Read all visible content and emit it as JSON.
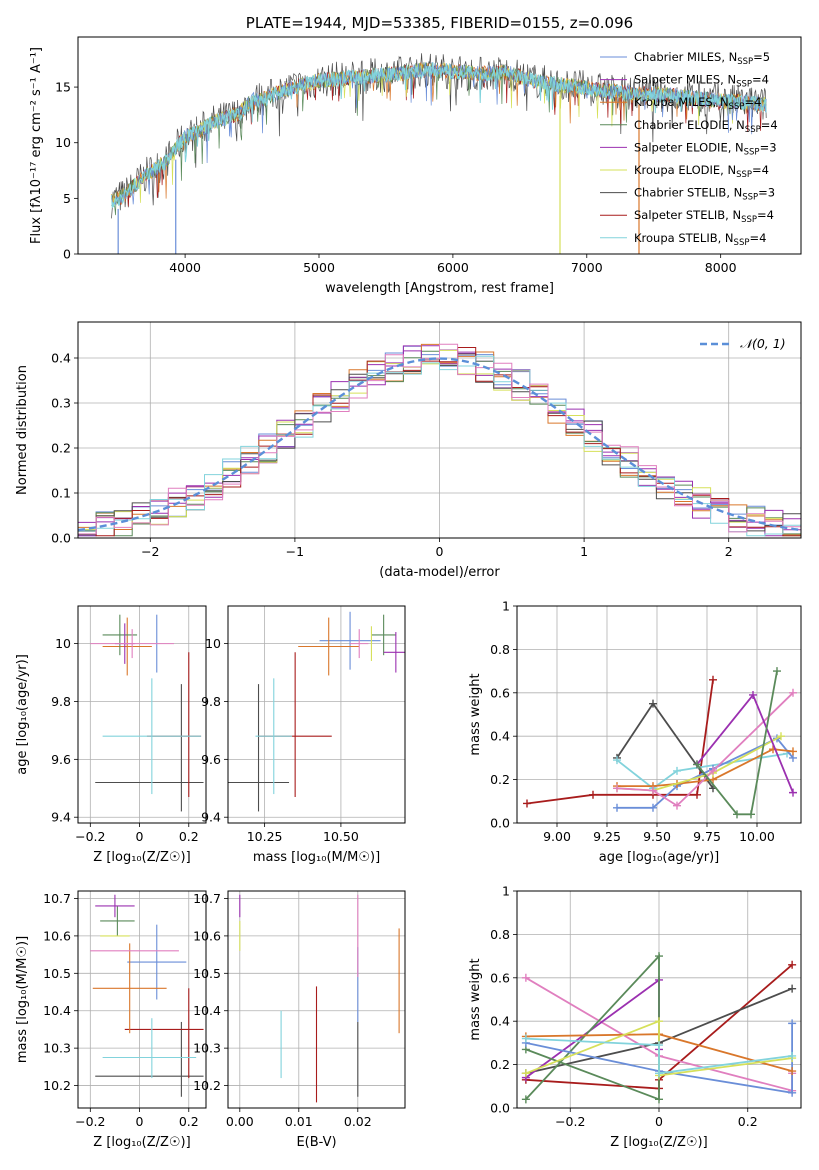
{
  "colors": {
    "chabrier_miles": "#6a8ed8",
    "salpeter_miles": "#9b30b0",
    "kroupa_miles": "#d9772b",
    "chabrier_elodie": "#5a8a5a",
    "salpeter_elodie": "#9b30b0",
    "kroupa_elodie": "#d6e05a",
    "chabrier_stelib": "#4d4d4d",
    "salpeter_stelib": "#a81c1c",
    "kroupa_stelib": "#82d3dc",
    "pink": "#e07fbf",
    "normal": "#5b8fd8"
  },
  "chart_data": [
    {
      "id": "spectrum",
      "type": "line",
      "title": "PLATE=1944, MJD=53385, FIBERID=0155, z=0.096",
      "xlabel": "wavelength [Angstrom, rest frame]",
      "ylabel": "Flux [fλ10⁻¹⁷ erg cm⁻² s⁻¹ A⁻¹]",
      "xlim": [
        3200,
        8600
      ],
      "ylim": [
        0,
        19.5
      ],
      "xticks": [
        4000,
        5000,
        6000,
        7000,
        8000
      ],
      "yticks": [
        0,
        5,
        10,
        15
      ],
      "grid": false,
      "legend_position": "top-right",
      "legend": [
        {
          "key": "chabrier_miles",
          "label": "Chabrier MILES, N",
          "sub": "SSP",
          "tail": "=5"
        },
        {
          "key": "salpeter_miles",
          "label": "Salpeter MILES, N",
          "sub": "SSP",
          "tail": "=4"
        },
        {
          "key": "kroupa_miles",
          "label": "Kroupa MILES, N",
          "sub": "SSP",
          "tail": "=4"
        },
        {
          "key": "chabrier_elodie",
          "label": "Chabrier ELODIE, N",
          "sub": "SSP",
          "tail": "=4"
        },
        {
          "key": "salpeter_elodie",
          "label": "Salpeter ELODIE, N",
          "sub": "SSP",
          "tail": "=3"
        },
        {
          "key": "kroupa_elodie",
          "label": "Kroupa ELODIE, N",
          "sub": "SSP",
          "tail": "=4"
        },
        {
          "key": "chabrier_stelib",
          "label": "Chabrier STELIB, N",
          "sub": "SSP",
          "tail": "=3"
        },
        {
          "key": "salpeter_stelib",
          "label": "Salpeter STELIB, N",
          "sub": "SSP",
          "tail": "=4"
        },
        {
          "key": "kroupa_stelib",
          "label": "Kroupa STELIB, N",
          "sub": "SSP",
          "tail": "=4"
        }
      ],
      "envelope": {
        "x": [
          3450,
          3550,
          3650,
          3750,
          3850,
          3950,
          4000,
          4100,
          4200,
          4300,
          4400,
          4500,
          4600,
          4700,
          4800,
          4900,
          5000,
          5200,
          5400,
          5600,
          5800,
          6000,
          6200,
          6400,
          6600,
          6800,
          7000,
          7200,
          7400,
          7600,
          7800,
          8000,
          8200,
          8340
        ],
        "y": [
          4.8,
          5.3,
          6.5,
          7.5,
          8.2,
          9.8,
          10.5,
          11.0,
          11.8,
          12.2,
          12.6,
          13.8,
          14.0,
          14.5,
          15.0,
          15.2,
          15.6,
          15.8,
          16.0,
          16.2,
          16.6,
          16.4,
          16.2,
          16.3,
          15.6,
          15.2,
          14.9,
          14.6,
          14.4,
          14.3,
          14.0,
          13.8,
          13.6,
          13.4
        ]
      },
      "absorption_dips": [
        {
          "x": 3500,
          "y": 0.0
        },
        {
          "x": 3930,
          "y": 0.0
        },
        {
          "x": 6800,
          "y": 0.0
        },
        {
          "x": 7390,
          "y": 0.0
        }
      ]
    },
    {
      "id": "residuals",
      "type": "histogram",
      "xlabel": "(data-model)/error",
      "ylabel": "Normed distribution",
      "xlim": [
        -2.5,
        2.5
      ],
      "ylim": [
        0,
        0.48
      ],
      "xticks": [
        -2,
        -1,
        0,
        1,
        2
      ],
      "yticks": [
        0.0,
        0.1,
        0.2,
        0.3,
        0.4
      ],
      "grid": true,
      "legend_position": "top-right",
      "legend_label": "𝒩(0, 1)",
      "bin_width": 0.125,
      "series_keys": [
        "chabrier_miles",
        "salpeter_miles",
        "kroupa_miles",
        "chabrier_elodie",
        "salpeter_elodie",
        "kroupa_elodie",
        "chabrier_stelib",
        "salpeter_stelib",
        "kroupa_stelib",
        "pink"
      ]
    },
    {
      "id": "age_vs_Z",
      "type": "errorbar",
      "xlabel": "Z [log₁₀(Z/Z☉)]",
      "ylabel": "age  [log₁₀(age/yr)]",
      "xlim": [
        -0.25,
        0.27
      ],
      "ylim": [
        9.38,
        10.13
      ],
      "xticks": [
        -0.2,
        0.0,
        0.2
      ],
      "yticks": [
        9.4,
        9.6,
        9.8,
        10.0
      ],
      "grid": true,
      "points": [
        {
          "key": "chabrier_stelib",
          "x": 0.04,
          "xerr": 0.22,
          "y": 9.52,
          "yerr": 0.0
        },
        {
          "key": "chabrier_stelib",
          "x": 0.17,
          "xerr": 0.0,
          "y": 9.64,
          "yerr": 0.22
        },
        {
          "key": "salpeter_stelib",
          "x": 0.2,
          "xerr": 0.0,
          "y": 9.72,
          "yerr": 0.25
        },
        {
          "key": "salpeter_stelib",
          "x": 0.14,
          "xerr": 0.11,
          "y": 9.68,
          "yerr": 0.0
        },
        {
          "key": "kroupa_stelib",
          "x": 0.05,
          "xerr": 0.2,
          "y": 9.68,
          "yerr": 0.2
        },
        {
          "key": "chabrier_miles",
          "x": 0.07,
          "xerr": 0.0,
          "y": 10.0,
          "yerr": 0.1
        },
        {
          "key": "kroupa_miles",
          "x": -0.05,
          "xerr": 0.1,
          "y": 9.99,
          "yerr": 0.1
        },
        {
          "key": "chabrier_elodie",
          "x": -0.08,
          "xerr": 0.07,
          "y": 10.03,
          "yerr": 0.07
        },
        {
          "key": "salpeter_elodie",
          "x": -0.06,
          "xerr": 0.04,
          "y": 10.0,
          "yerr": 0.07
        },
        {
          "key": "pink",
          "x": -0.03,
          "xerr": 0.17,
          "y": 10.0,
          "yerr": 0.05
        }
      ]
    },
    {
      "id": "age_vs_mass",
      "type": "errorbar",
      "xlabel": "mass [log₁₀(M/M☉)]",
      "xlim": [
        10.13,
        10.71
      ],
      "ylim": [
        9.38,
        10.13
      ],
      "xticks": [
        10.25,
        10.5
      ],
      "xticklabels": [
        "10.25",
        "10.50"
      ],
      "yticks": [
        9.4,
        9.6,
        9.8,
        10.0
      ],
      "grid": true,
      "points": [
        {
          "key": "chabrier_stelib",
          "x": 10.23,
          "xerr": 0.1,
          "y": 9.52,
          "yerr": 0.0
        },
        {
          "key": "chabrier_stelib",
          "x": 10.23,
          "xerr": 0.0,
          "y": 9.64,
          "yerr": 0.22
        },
        {
          "key": "salpeter_stelib",
          "x": 10.35,
          "xerr": 0.12,
          "y": 9.68,
          "yerr": 0.0
        },
        {
          "key": "salpeter_stelib",
          "x": 10.35,
          "xerr": 0.0,
          "y": 9.72,
          "yerr": 0.25
        },
        {
          "key": "kroupa_stelib",
          "x": 10.28,
          "xerr": 0.06,
          "y": 9.68,
          "yerr": 0.2
        },
        {
          "key": "chabrier_miles",
          "x": 10.53,
          "xerr": 0.1,
          "y": 10.01,
          "yerr": 0.1
        },
        {
          "key": "kroupa_miles",
          "x": 10.46,
          "xerr": 0.1,
          "y": 9.99,
          "yerr": 0.1
        },
        {
          "key": "chabrier_elodie",
          "x": 10.64,
          "xerr": 0.04,
          "y": 10.03,
          "yerr": 0.07
        },
        {
          "key": "salpeter_elodie",
          "x": 10.68,
          "xerr": 0.04,
          "y": 9.97,
          "yerr": 0.07
        },
        {
          "key": "kroupa_elodie",
          "x": 10.6,
          "xerr": 0.0,
          "y": 10.0,
          "yerr": 0.06
        },
        {
          "key": "pink",
          "x": 10.56,
          "xerr": 0.03,
          "y": 10.0,
          "yerr": 0.05
        }
      ]
    },
    {
      "id": "weight_vs_age",
      "type": "line",
      "xlabel": "age  [log₁₀(age/yr)]",
      "ylabel": "mass weight",
      "xlim": [
        8.8,
        10.22
      ],
      "ylim": [
        0.0,
        1.0
      ],
      "xticks": [
        9.0,
        9.25,
        9.5,
        9.75,
        10.0
      ],
      "xticklabels": [
        "9.00",
        "9.25",
        "9.50",
        "9.75",
        "10.00"
      ],
      "yticks": [
        0.0,
        0.2,
        0.4,
        0.6,
        0.8,
        1.0
      ],
      "grid": true,
      "series": [
        {
          "key": "salpeter_stelib",
          "x": [
            8.85,
            9.18,
            9.48,
            9.7,
            9.78
          ],
          "y": [
            0.09,
            0.13,
            0.13,
            0.13,
            0.66
          ]
        },
        {
          "key": "chabrier_stelib",
          "x": [
            9.3,
            9.48,
            9.78
          ],
          "y": [
            0.3,
            0.55,
            0.16
          ]
        },
        {
          "key": "kroupa_stelib",
          "x": [
            9.3,
            9.48,
            9.6,
            10.15
          ],
          "y": [
            0.29,
            0.16,
            0.24,
            0.32
          ]
        },
        {
          "key": "chabrier_miles",
          "x": [
            9.3,
            9.48,
            9.6,
            9.78,
            10.1,
            10.18
          ],
          "y": [
            0.07,
            0.07,
            0.17,
            0.25,
            0.39,
            0.3
          ]
        },
        {
          "key": "kroupa_miles",
          "x": [
            9.3,
            9.48,
            9.6,
            9.78,
            10.08,
            10.18
          ],
          "y": [
            0.17,
            0.17,
            0.18,
            0.2,
            0.34,
            0.33
          ]
        },
        {
          "key": "kroupa_elodie",
          "x": [
            9.3,
            9.48,
            9.78,
            10.12
          ],
          "y": [
            0.16,
            0.15,
            0.23,
            0.4
          ]
        },
        {
          "key": "pink",
          "x": [
            9.3,
            9.48,
            9.6,
            9.78,
            10.18
          ],
          "y": [
            0.16,
            0.15,
            0.08,
            0.24,
            0.6
          ]
        },
        {
          "key": "salpeter_elodie",
          "x": [
            9.7,
            9.98,
            10.18
          ],
          "y": [
            0.27,
            0.59,
            0.14
          ]
        },
        {
          "key": "chabrier_elodie",
          "x": [
            9.7,
            9.9,
            9.97,
            10.1
          ],
          "y": [
            0.27,
            0.04,
            0.04,
            0.7
          ]
        }
      ]
    },
    {
      "id": "mass_vs_Z",
      "type": "errorbar",
      "xlabel": "Z [log₁₀(Z/Z☉)]",
      "ylabel": "mass [log₁₀(M/M☉)]",
      "xlim": [
        -0.25,
        0.27
      ],
      "ylim": [
        10.14,
        10.72
      ],
      "xticks": [
        -0.2,
        0.0,
        0.2
      ],
      "yticks": [
        10.2,
        10.3,
        10.4,
        10.5,
        10.6,
        10.7
      ],
      "grid": true,
      "points": [
        {
          "key": "chabrier_stelib",
          "x": 0.04,
          "xerr": 0.22,
          "y": 10.225,
          "yerr": 0.0
        },
        {
          "key": "chabrier_stelib",
          "x": 0.17,
          "xerr": 0.0,
          "y": 10.27,
          "yerr": 0.1
        },
        {
          "key": "salpeter_stelib",
          "x": 0.2,
          "xerr": 0.0,
          "y": 10.34,
          "yerr": 0.12
        },
        {
          "key": "salpeter_stelib",
          "x": 0.1,
          "xerr": 0.16,
          "y": 10.35,
          "yerr": 0.0
        },
        {
          "key": "kroupa_stelib",
          "x": 0.04,
          "xerr": 0.19,
          "y": 10.275,
          "yerr": 0.0
        },
        {
          "key": "kroupa_stelib",
          "x": 0.05,
          "xerr": 0.0,
          "y": 10.3,
          "yerr": 0.08
        },
        {
          "key": "chabrier_miles",
          "x": 0.07,
          "xerr": 0.12,
          "y": 10.53,
          "yerr": 0.1
        },
        {
          "key": "kroupa_miles",
          "x": -0.04,
          "xerr": 0.15,
          "y": 10.46,
          "yerr": 0.12
        },
        {
          "key": "chabrier_elodie",
          "x": -0.09,
          "xerr": 0.07,
          "y": 10.64,
          "yerr": 0.04
        },
        {
          "key": "salpeter_elodie",
          "x": -0.1,
          "xerr": 0.08,
          "y": 10.68,
          "yerr": 0.03
        },
        {
          "key": "kroupa_elodie",
          "x": -0.1,
          "xerr": 0.06,
          "y": 10.6,
          "yerr": 0.0
        },
        {
          "key": "pink",
          "x": -0.02,
          "xerr": 0.18,
          "y": 10.56,
          "yerr": 0.0
        }
      ]
    },
    {
      "id": "mass_vs_ebv",
      "type": "errorbar",
      "xlabel": "E(B-V)",
      "xlim": [
        -0.002,
        0.028
      ],
      "ylim": [
        10.14,
        10.72
      ],
      "xticks": [
        0.0,
        0.01,
        0.02
      ],
      "xticklabels": [
        "0.00",
        "0.01",
        "0.02"
      ],
      "yticks": [
        10.2,
        10.3,
        10.4,
        10.5,
        10.6,
        10.7
      ],
      "grid": true,
      "points": [
        {
          "key": "chabrier_stelib",
          "x": 0.02,
          "xerr": 0.0,
          "y": 10.27,
          "yerr": 0.1
        },
        {
          "key": "salpeter_stelib",
          "x": 0.013,
          "xerr": 0.0,
          "y": 10.31,
          "yerr": 0.155
        },
        {
          "key": "kroupa_stelib",
          "x": 0.007,
          "xerr": 0.0,
          "y": 10.31,
          "yerr": 0.09
        },
        {
          "key": "chabrier_miles",
          "x": 0.02,
          "xerr": 0.0,
          "y": 10.47,
          "yerr": 0.1
        },
        {
          "key": "kroupa_miles",
          "x": 0.027,
          "xerr": 0.0,
          "y": 10.48,
          "yerr": 0.14
        },
        {
          "key": "pink",
          "x": 0.02,
          "xerr": 0.0,
          "y": 10.6,
          "yerr": 0.11
        },
        {
          "key": "salpeter_elodie",
          "x": 0.0,
          "xerr": 0.0,
          "y": 10.68,
          "yerr": 0.03
        },
        {
          "key": "kroupa_elodie",
          "x": 0.0,
          "xerr": 0.0,
          "y": 10.6,
          "yerr": 0.04
        }
      ]
    },
    {
      "id": "weight_vs_Z",
      "type": "line",
      "xlabel": "Z [log₁₀(Z/Z☉)]",
      "ylabel": "mass weight",
      "xlim": [
        -0.32,
        0.32
      ],
      "ylim": [
        0.0,
        1.0
      ],
      "xticks": [
        -0.2,
        0.0,
        0.2
      ],
      "yticks": [
        0.0,
        0.2,
        0.4,
        0.6,
        0.8,
        1.0
      ],
      "grid": true,
      "series": [
        {
          "key": "salpeter_stelib",
          "x": [
            -0.3,
            0.0,
            0.0,
            0.3
          ],
          "y": [
            0.13,
            0.09,
            0.13,
            0.66
          ]
        },
        {
          "key": "chabrier_stelib",
          "x": [
            -0.3,
            0.0,
            0.3
          ],
          "y": [
            0.16,
            0.3,
            0.55
          ]
        },
        {
          "key": "pink",
          "x": [
            -0.3,
            0.0,
            0.3,
            0.3
          ],
          "y": [
            0.6,
            0.24,
            0.08,
            0.16
          ]
        },
        {
          "key": "salpeter_elodie",
          "x": [
            -0.3,
            0.0,
            0.0
          ],
          "y": [
            0.14,
            0.59,
            0.27
          ]
        },
        {
          "key": "chabrier_elodie",
          "x": [
            -0.3,
            0.0,
            0.0,
            -0.3
          ],
          "y": [
            0.04,
            0.7,
            0.04,
            0.27
          ]
        },
        {
          "key": "chabrier_miles",
          "x": [
            -0.3,
            0.0,
            0.3,
            0.3
          ],
          "y": [
            0.3,
            0.17,
            0.07,
            0.39
          ]
        },
        {
          "key": "kroupa_miles",
          "x": [
            -0.3,
            0.0,
            0.3
          ],
          "y": [
            0.33,
            0.34,
            0.17
          ]
        },
        {
          "key": "kroupa_elodie",
          "x": [
            -0.3,
            0.0,
            0.0,
            0.3
          ],
          "y": [
            0.16,
            0.4,
            0.15,
            0.23
          ]
        },
        {
          "key": "kroupa_stelib",
          "x": [
            -0.3,
            0.0,
            0.0,
            0.3
          ],
          "y": [
            0.32,
            0.29,
            0.16,
            0.24
          ]
        }
      ]
    }
  ]
}
